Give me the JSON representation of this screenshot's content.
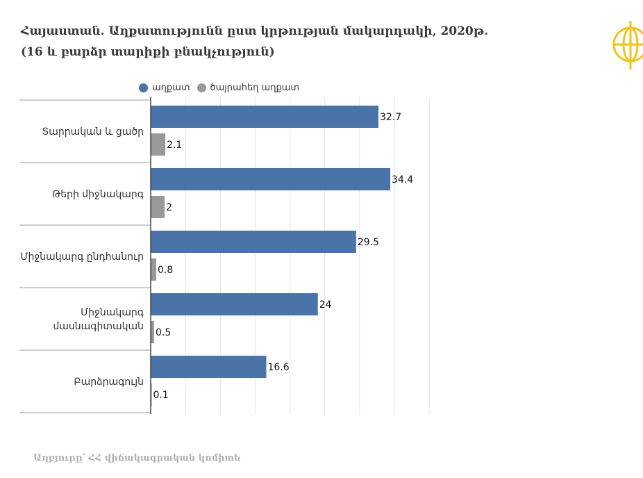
{
  "title": {
    "line1": "Հայաստան. Աղքատությունն ըստ կրթության մակարդակի, 2020թ.",
    "line2": "(16 և բարձր տարիքի բնակչություն)"
  },
  "source": "Աղբյուրը՝ ՀՀ վիճակագրական կոմիտե",
  "colors": {
    "poor": "#4a73a8",
    "extreme": "#999999",
    "grid": "#e3e3e3",
    "text": "#333333",
    "logo": "#f2c21a"
  },
  "logo_icon": "globe-emblem-icon",
  "chart_data": {
    "type": "bar",
    "orientation": "horizontal",
    "categories": [
      [
        "Տարրական և ցածր"
      ],
      [
        "Թերի միջնակարգ"
      ],
      [
        "Միջնակարգ ընդհանուր"
      ],
      [
        "Միջնակարգ",
        "մասնագիտական"
      ],
      [
        "Բարձրագույն"
      ]
    ],
    "series": [
      {
        "name": "աղքատ",
        "values": [
          32.7,
          34.4,
          29.5,
          24,
          16.6
        ],
        "color": "#4a73a8"
      },
      {
        "name": "ծայրահեղ աղքատ",
        "values": [
          2.1,
          2,
          0.8,
          0.5,
          0.1
        ],
        "color": "#999999"
      }
    ],
    "xlim": [
      0,
      40
    ],
    "grid": true,
    "legend": "top"
  }
}
